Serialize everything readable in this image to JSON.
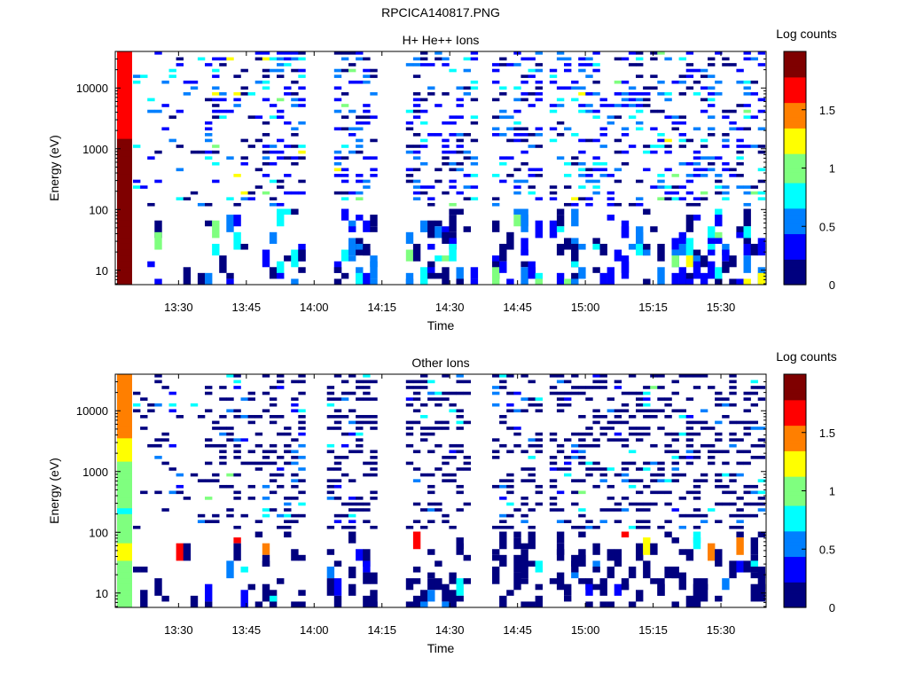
{
  "figure": {
    "title": "RPCICA140817.PNG"
  },
  "colormap": [
    "#00007f",
    "#0000ff",
    "#007fff",
    "#00ffff",
    "#7fff7f",
    "#ffff00",
    "#ff7f00",
    "#ff0000",
    "#7f0000"
  ],
  "chart_data": [
    {
      "type": "heatmap",
      "title": "H+ He++ Ions",
      "xlabel": "Time",
      "ylabel": "Energy (eV)",
      "xtick_labels": [
        "13:30",
        "13:45",
        "14:00",
        "14:15",
        "14:30",
        "14:45",
        "15:00",
        "15:15",
        "15:30"
      ],
      "xticks_minutes": [
        810,
        825,
        840,
        855,
        870,
        885,
        900,
        915,
        930
      ],
      "xlim_minutes": [
        796,
        940
      ],
      "yscale": "log",
      "ylim": [
        5.8,
        40000
      ],
      "yticks": [
        10,
        100,
        1000,
        10000
      ],
      "ytick_labels": [
        "10",
        "100",
        "1000",
        "10000"
      ],
      "colorbar": {
        "label": "Log counts",
        "range": [
          0,
          2
        ],
        "ticks": [
          0,
          0.5,
          1,
          1.5
        ],
        "tick_labels": [
          "0",
          "0.5",
          "1",
          "1.5"
        ]
      },
      "profile_levels": [
        1.6,
        1.6,
        1.6,
        1.6,
        1.6,
        1.6,
        1.6,
        1.6,
        1.62,
        1.64,
        1.65,
        1.67,
        1.7,
        1.72,
        1.75,
        1.78,
        1.8,
        1.82,
        1.85,
        1.87,
        1.88,
        1.9,
        1.92,
        1.93,
        1.95,
        1.96,
        1.97,
        1.98,
        1.98,
        1.99,
        1.99,
        2.0,
        2.0,
        2.0,
        2.0,
        2.0,
        2.0,
        2.0,
        2.0,
        2.0
      ]
    },
    {
      "type": "heatmap",
      "title": "Other Ions",
      "xlabel": "Time",
      "ylabel": "Energy (eV)",
      "xtick_labels": [
        "13:30",
        "13:45",
        "14:00",
        "14:15",
        "14:30",
        "14:45",
        "15:00",
        "15:15",
        "15:30"
      ],
      "xticks_minutes": [
        810,
        825,
        840,
        855,
        870,
        885,
        900,
        915,
        930
      ],
      "xlim_minutes": [
        796,
        940
      ],
      "yscale": "log",
      "ylim": [
        5.8,
        40000
      ],
      "yticks": [
        10,
        100,
        1000,
        10000
      ],
      "ytick_labels": [
        "10",
        "100",
        "1000",
        "10000"
      ],
      "colorbar": {
        "label": "Log counts",
        "range": [
          0,
          2
        ],
        "ticks": [
          0,
          0.5,
          1,
          1.5
        ],
        "tick_labels": [
          "0",
          "0.5",
          "1",
          "1.5"
        ]
      },
      "profile_levels": [
        1.45,
        1.45,
        1.45,
        1.45,
        1.45,
        1.45,
        1.45,
        1.45,
        1.42,
        1.4,
        1.35,
        1.3,
        1.25,
        1.2,
        1.15,
        1.1,
        1.05,
        1.0,
        1.0,
        0.95,
        0.95,
        0.9,
        0.9,
        0.85,
        0.9,
        0.95,
        1.0,
        1.05,
        1.1,
        1.15,
        1.2,
        1.15,
        1.1,
        1.05,
        1.0,
        1.05,
        1.1,
        1.05,
        1.0,
        1.0
      ]
    }
  ]
}
